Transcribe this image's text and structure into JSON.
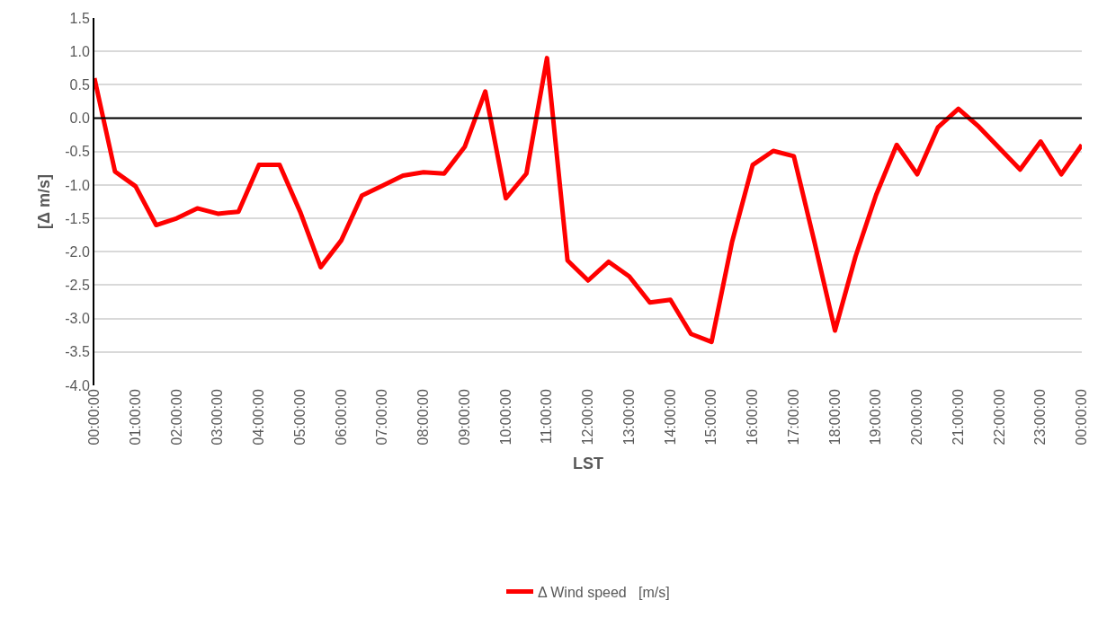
{
  "chart_data": {
    "type": "line",
    "xlabel": "LST",
    "ylabel": "[Δ m/s]",
    "categories": [
      "00:00:00",
      null,
      "01:00:00",
      null,
      "02:00:00",
      null,
      "03:00:00",
      null,
      "04:00:00",
      null,
      "05:00:00",
      null,
      "06:00:00",
      null,
      "07:00:00",
      null,
      "08:00:00",
      null,
      "09:00:00",
      null,
      "10:00:00",
      null,
      "11:00:00",
      null,
      "12:00:00",
      null,
      "13:00:00",
      null,
      "14:00:00",
      null,
      "15:00:00",
      null,
      "16:00:00",
      null,
      "17:00:00",
      null,
      "18:00:00",
      null,
      "19:00:00",
      null,
      "20:00:00",
      null,
      "21:00:00",
      null,
      "22:00:00",
      null,
      "23:00:00",
      null,
      "00:00:00"
    ],
    "series": [
      {
        "name": "Δ Wind speed   [m/s]",
        "color": "#ff0000",
        "values": [
          0.6,
          -0.8,
          -1.02,
          -1.6,
          -1.5,
          -1.35,
          -1.43,
          -1.4,
          -0.7,
          -0.7,
          -1.4,
          -2.23,
          -1.83,
          -1.16,
          -1.01,
          -0.86,
          -0.81,
          -0.83,
          -0.43,
          0.4,
          -1.2,
          -0.83,
          0.9,
          -2.13,
          -2.43,
          -2.15,
          -2.37,
          -2.76,
          -2.72,
          -3.23,
          -3.35,
          -1.85,
          -0.7,
          -0.49,
          -0.57,
          -1.85,
          -3.18,
          -2.07,
          -1.15,
          -0.4,
          -0.84,
          -0.14,
          0.14,
          -0.13,
          -0.45,
          -0.77,
          -0.35,
          -0.84,
          -0.4
        ]
      }
    ],
    "ylim": [
      -4.0,
      1.5
    ],
    "yticks": [
      {
        "value": -4,
        "label": "-4.0"
      },
      {
        "value": -3.5,
        "label": "-3.5"
      },
      {
        "value": -3,
        "label": "-3.0"
      },
      {
        "value": -2.5,
        "label": "-2.5"
      },
      {
        "value": -2,
        "label": "-2.0"
      },
      {
        "value": -1.5,
        "label": "-1.5"
      },
      {
        "value": -1,
        "label": "-1.0"
      },
      {
        "value": -0.5,
        "label": "-0.5"
      },
      {
        "value": 0,
        "label": "0.0"
      },
      {
        "value": 0.5,
        "label": "0.5"
      },
      {
        "value": 1,
        "label": "1.0"
      },
      {
        "value": 1.5,
        "label": "1.5"
      }
    ],
    "ref_lines": [
      {
        "axis": "y",
        "value": 0,
        "color": "#000000"
      }
    ],
    "grid": "y",
    "legend": "bottom",
    "marker": "none",
    "line_style": "solid"
  }
}
